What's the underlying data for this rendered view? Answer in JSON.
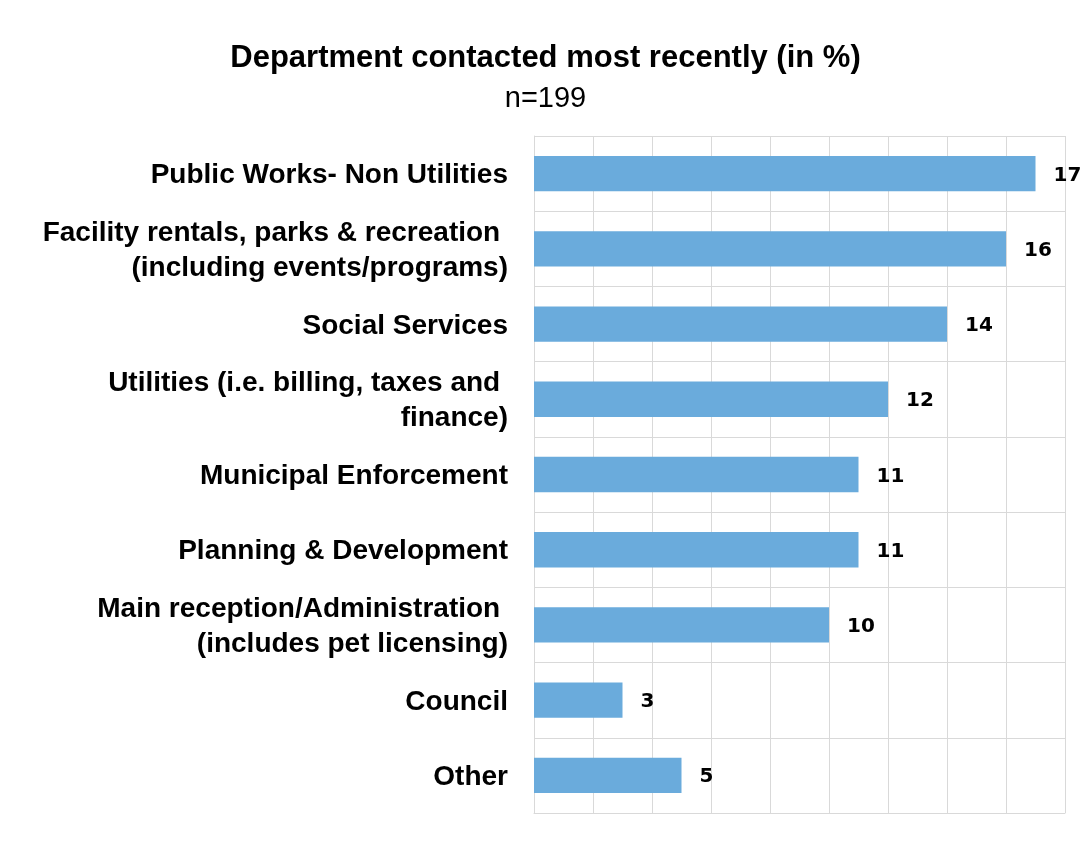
{
  "chart_data": {
    "type": "bar",
    "orientation": "horizontal",
    "title": "Department contacted most recently (in %)",
    "subtitle": "n=199",
    "categories": [
      "Public Works- Non Utilities",
      "Facility rentals, parks & recreation (including events/programs)",
      "Social Services",
      "Utilities (i.e. billing, taxes and finance)",
      "Municipal Enforcement",
      "Planning & Development",
      "Main reception/Administration (includes pet licensing)",
      "Council",
      "Other"
    ],
    "values": [
      17,
      16,
      14,
      12,
      11,
      11,
      10,
      3,
      5
    ],
    "color": "#6aabdc",
    "data_labels": true,
    "xlim": [
      0,
      18
    ],
    "xticks": [
      {
        "value": 0,
        "label": null
      },
      {
        "value": 2,
        "label": null
      },
      {
        "value": 4,
        "label": null
      },
      {
        "value": 6,
        "label": null
      },
      {
        "value": 8,
        "label": null
      },
      {
        "value": 10,
        "label": null
      },
      {
        "value": 12,
        "label": null
      },
      {
        "value": 14,
        "label": null
      },
      {
        "value": 16,
        "label": null
      },
      {
        "value": 18,
        "label": null
      }
    ],
    "grid": true,
    "tick_labels": "y"
  }
}
